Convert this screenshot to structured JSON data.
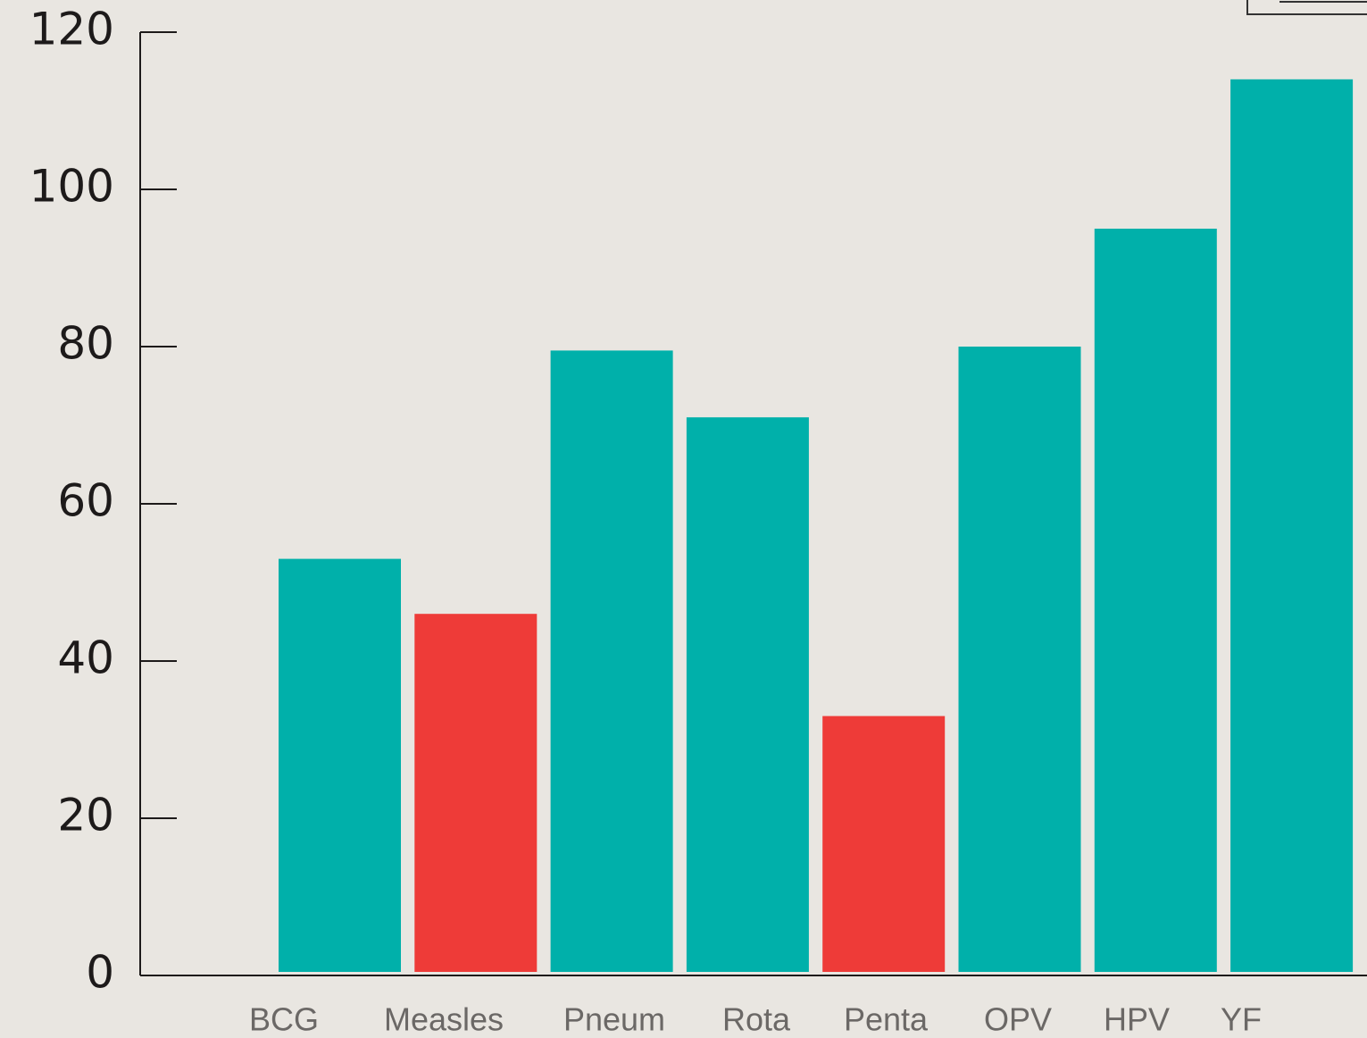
{
  "chart_data": {
    "type": "bar",
    "categories": [
      "BCG",
      "Measles",
      "Pneum",
      "Rota",
      "Penta",
      "OPV",
      "HPV",
      "YF"
    ],
    "values": [
      53,
      46,
      79.5,
      71,
      33,
      80,
      95,
      114
    ],
    "colors": [
      "#00b0aa",
      "#ee3b38",
      "#00b0aa",
      "#00b0aa",
      "#ee3b38",
      "#00b0aa",
      "#00b0aa",
      "#00b0aa"
    ],
    "ylim": [
      0,
      120
    ],
    "yticks": [
      0,
      20,
      40,
      60,
      80,
      100,
      120
    ],
    "grid": false
  }
}
